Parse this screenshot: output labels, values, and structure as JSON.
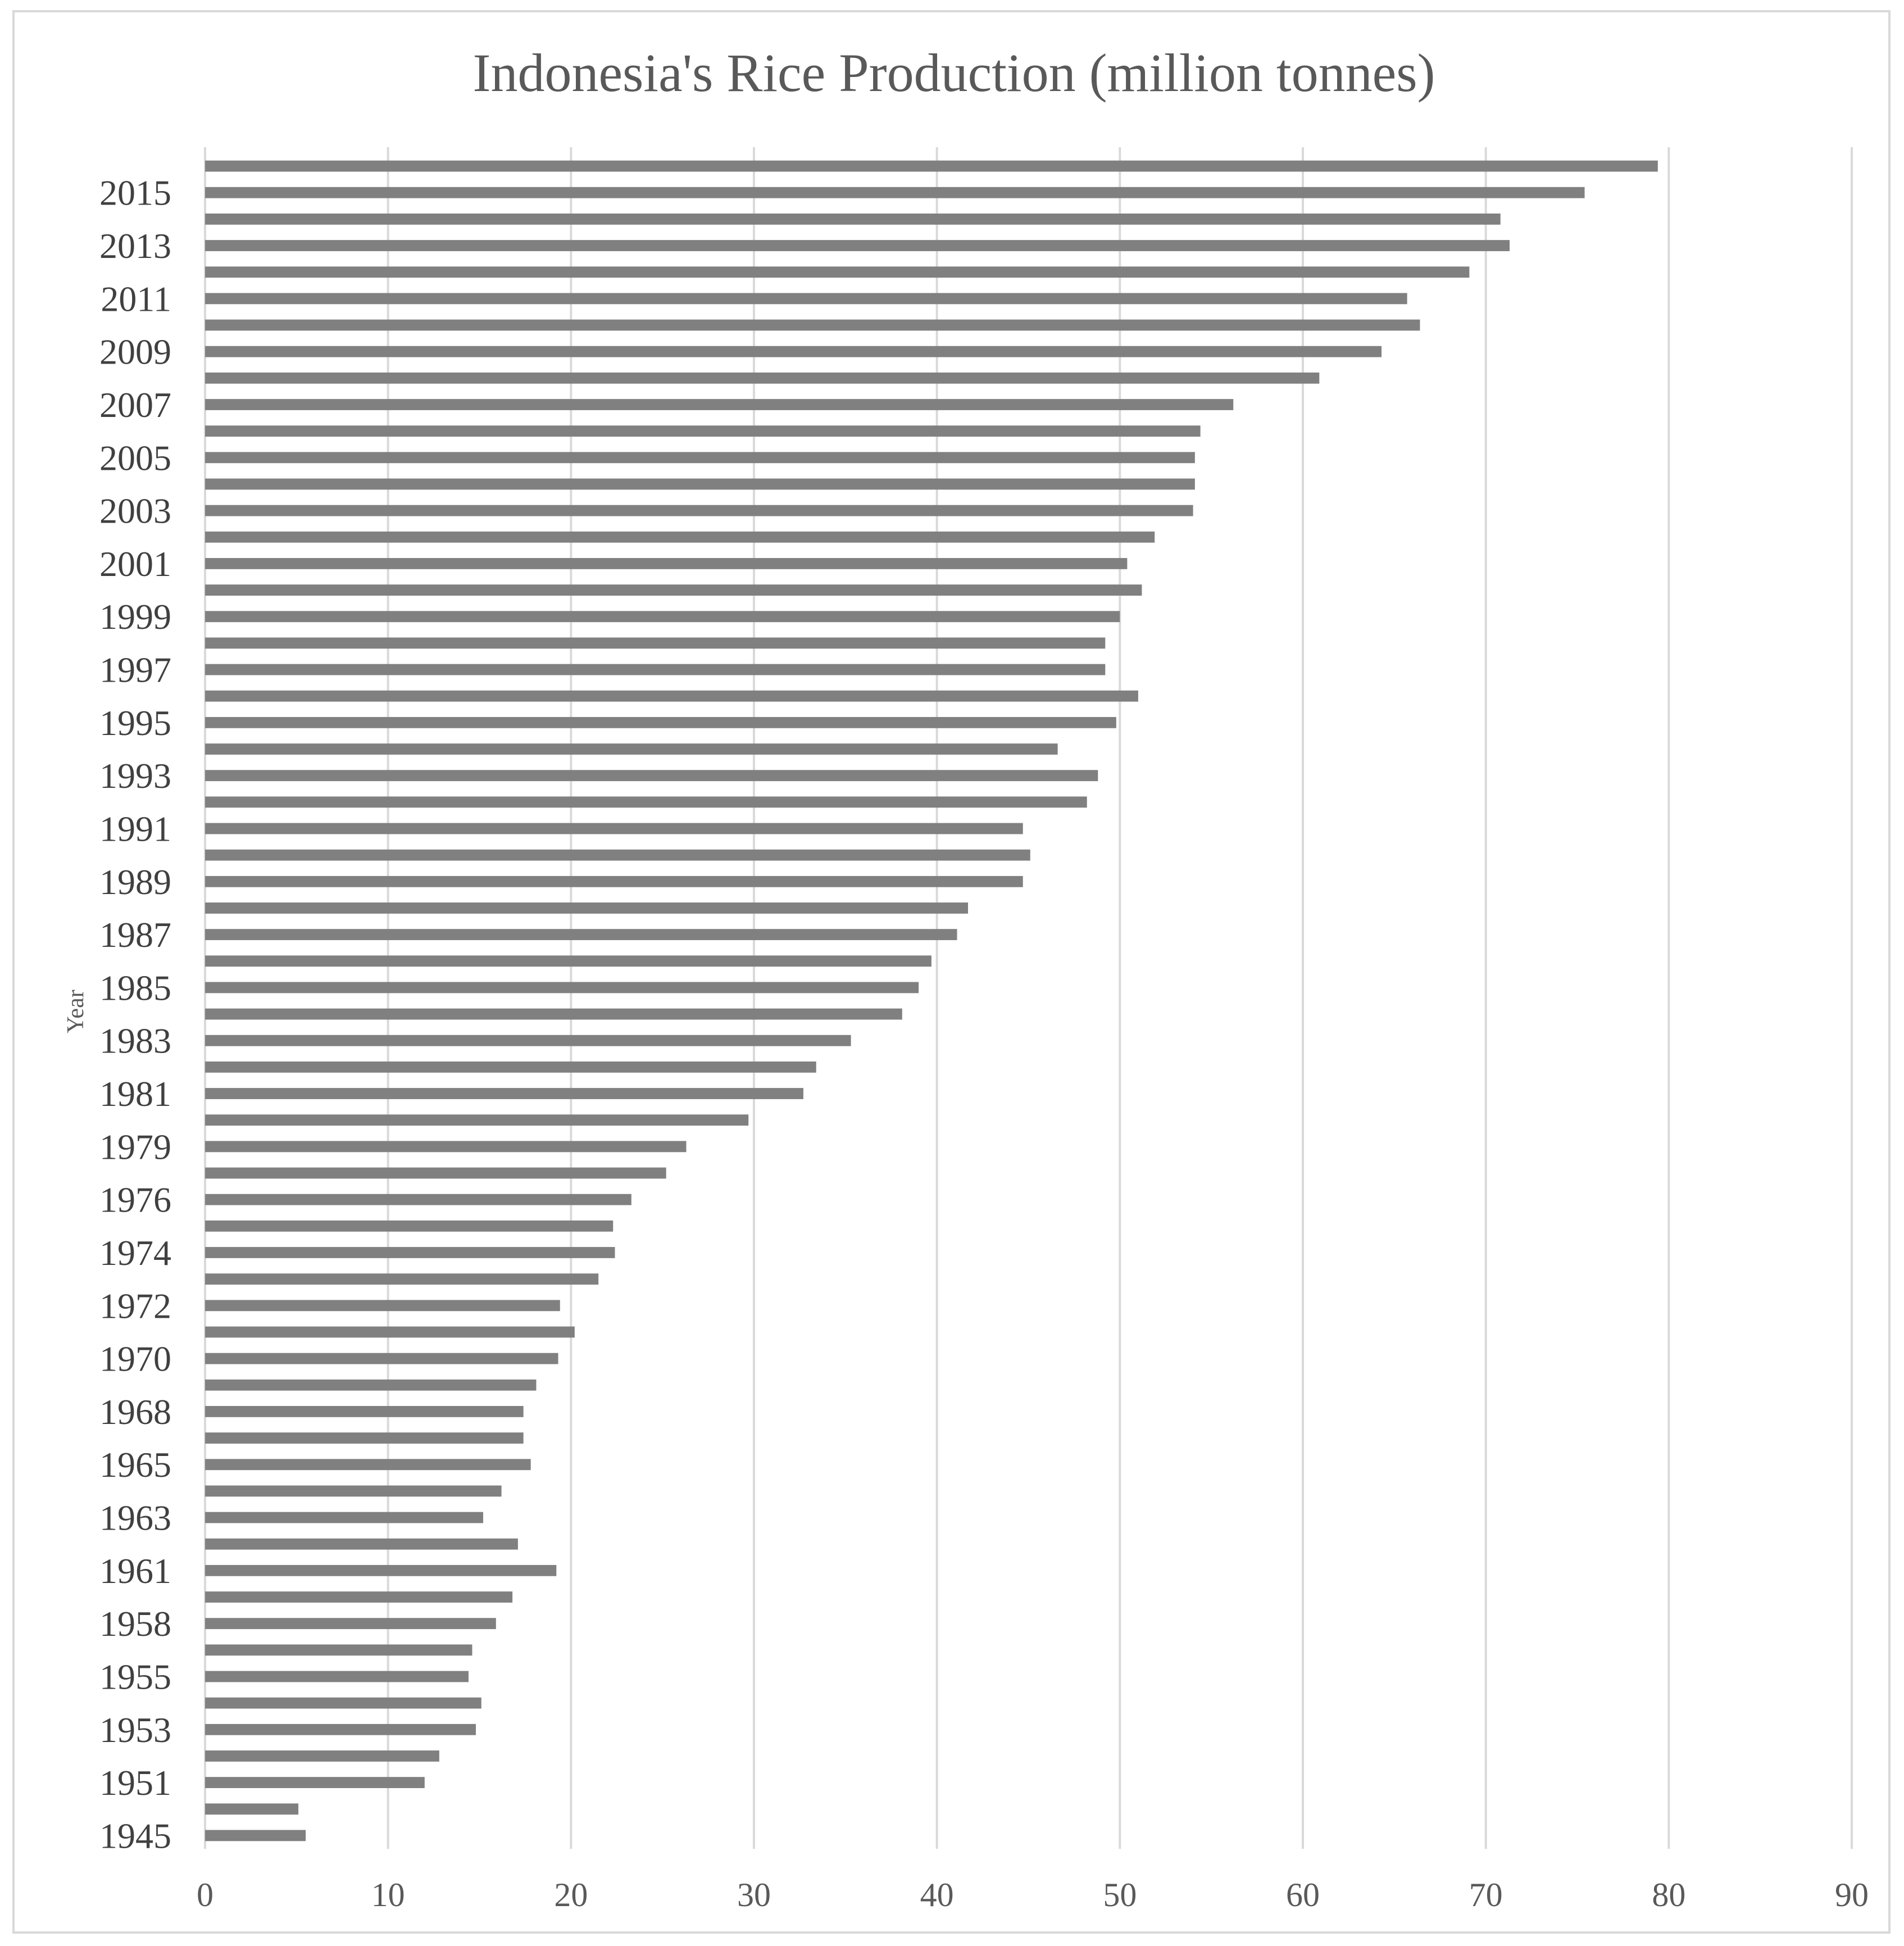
{
  "chart_data": {
    "type": "bar",
    "orientation": "horizontal",
    "title": "Indonesia's Rice Production (million tonnes)",
    "xlabel": "",
    "ylabel": "Year",
    "xlim": [
      0,
      90
    ],
    "xticks": [
      0,
      10,
      20,
      30,
      40,
      50,
      60,
      70,
      80,
      90
    ],
    "grid": true,
    "legend": "none",
    "bar_color": "#808080",
    "categories": [
      "",
      "2015",
      "",
      "2013",
      "",
      "2011",
      "",
      "2009",
      "",
      "2007",
      "",
      "2005",
      "",
      "2003",
      "",
      "2001",
      "",
      "1999",
      "",
      "1997",
      "",
      "1995",
      "",
      "1993",
      "",
      "1991",
      "",
      "1989",
      "",
      "1987",
      "",
      "1985",
      "",
      "1983",
      "",
      "1981",
      "",
      "1979",
      "",
      "1976",
      "",
      "1974",
      "",
      "1972",
      "",
      "1970",
      "",
      "1968",
      "",
      "1965",
      "",
      "1963",
      "",
      "1961",
      "",
      "1958",
      "",
      "1955",
      "",
      "1953",
      "",
      "1951",
      "",
      "1945"
    ],
    "values": [
      79.4,
      75.4,
      70.8,
      71.3,
      69.1,
      65.7,
      66.4,
      64.3,
      60.9,
      56.2,
      54.4,
      54.1,
      54.1,
      54.0,
      51.9,
      50.4,
      51.2,
      50.0,
      49.2,
      49.2,
      51.0,
      49.8,
      46.6,
      48.8,
      48.2,
      44.7,
      45.1,
      44.7,
      41.7,
      41.1,
      39.7,
      39.0,
      38.1,
      35.3,
      33.4,
      32.7,
      29.7,
      26.3,
      25.2,
      23.3,
      22.3,
      22.4,
      21.5,
      19.4,
      20.2,
      19.3,
      18.1,
      17.4,
      17.4,
      17.8,
      16.2,
      15.2,
      17.1,
      19.2,
      16.8,
      15.9,
      14.6,
      14.4,
      15.1,
      14.8,
      12.8,
      12.0,
      5.1,
      5.5
    ]
  }
}
